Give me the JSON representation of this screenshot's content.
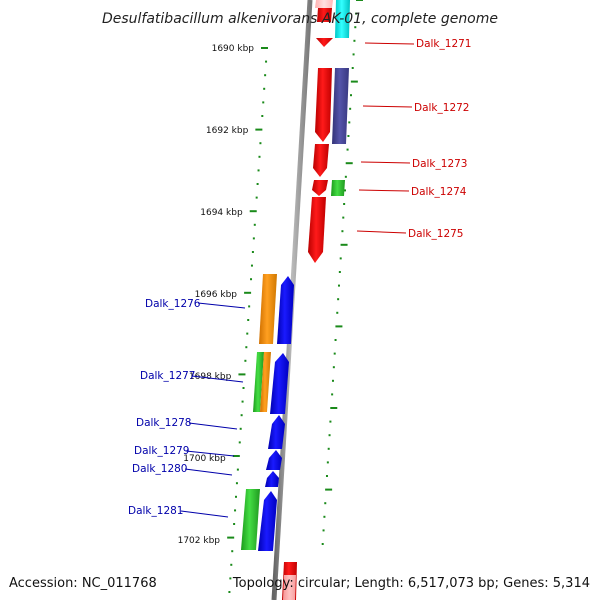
{
  "title": "Desulfatibacillum alkenivorans AK-01, complete genome",
  "footer": {
    "accession": "Accession: NC_011768",
    "topology": "Topology: circular; Length: 6,517,073 bp; Genes: 5,314"
  },
  "colors": {
    "forward_label": "#cc0000",
    "reverse_label": "#0000aa",
    "backbone": "#888888",
    "tick": "#1a8a1a"
  },
  "kbp_marks": [
    {
      "label": "1690 kbp",
      "kbp": 1690
    },
    {
      "label": "1692 kbp",
      "kbp": 1692
    },
    {
      "label": "1694 kbp",
      "kbp": 1694
    },
    {
      "label": "1696 kbp",
      "kbp": 1696
    },
    {
      "label": "1698 kbp",
      "kbp": 1698
    },
    {
      "label": "1700 kbp",
      "kbp": 1700
    },
    {
      "label": "1702 kbp",
      "kbp": 1702
    }
  ],
  "genes_forward": [
    {
      "label": "Dalk_1271",
      "color": "#ff0000"
    },
    {
      "label": "Dalk_1272",
      "color": "#ff0000"
    },
    {
      "label": "Dalk_1273",
      "color": "#ff0000"
    },
    {
      "label": "Dalk_1274",
      "color": "#ff0000"
    },
    {
      "label": "Dalk_1275",
      "color": "#ff0000"
    }
  ],
  "genes_reverse": [
    {
      "label": "Dalk_1276",
      "color": "#0000ff"
    },
    {
      "label": "Dalk_1277",
      "color": "#0000ff"
    },
    {
      "label": "Dalk_1278",
      "color": "#0000ff"
    },
    {
      "label": "Dalk_1279",
      "color": "#0000ff"
    },
    {
      "label": "Dalk_1280",
      "color": "#0000ff"
    },
    {
      "label": "Dalk_1281",
      "color": "#0000ff"
    }
  ]
}
